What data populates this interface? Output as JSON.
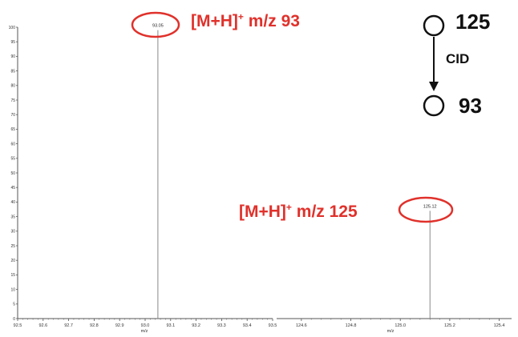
{
  "colors": {
    "annotation": "#e0312b",
    "peak": "#888888",
    "axis": "#555555",
    "scheme": "#111111"
  },
  "chart_data": [
    {
      "type": "bar",
      "xlabel": "m/z",
      "ylabel": "",
      "xlim": [
        92.5,
        93.5
      ],
      "ylim": [
        0,
        100
      ],
      "xticks": [
        "92.5",
        "92.6",
        "92.7",
        "92.8",
        "92.9",
        "93.0",
        "93.1",
        "93.2",
        "93.3",
        "93.4",
        "93.5"
      ],
      "yticks": [
        "0",
        "5",
        "10",
        "15",
        "20",
        "25",
        "30",
        "35",
        "40",
        "45",
        "50",
        "55",
        "60",
        "65",
        "70",
        "75",
        "80",
        "85",
        "90",
        "95",
        "100"
      ],
      "peaks": [
        {
          "x": 93.05,
          "y": 99,
          "label": "93.05"
        }
      ],
      "annotation": {
        "prefix": "[M+H]",
        "sup": "+",
        "suffix": " m/z 93"
      }
    },
    {
      "type": "bar",
      "xlabel": "m/z",
      "ylabel": "",
      "xlim": [
        124.5,
        125.45
      ],
      "ylim": [
        0,
        100
      ],
      "xticks": [
        "124.6",
        "124.8",
        "125.0",
        "125.2",
        "125.4"
      ],
      "peaks": [
        {
          "x": 125.12,
          "y": 37,
          "label": "125.12"
        }
      ],
      "annotation": {
        "prefix": "[M+H]",
        "sup": "+",
        "suffix": " m/z 125"
      }
    }
  ],
  "scheme": {
    "precursor": "125",
    "product": "93",
    "arrow_label": "CID"
  }
}
